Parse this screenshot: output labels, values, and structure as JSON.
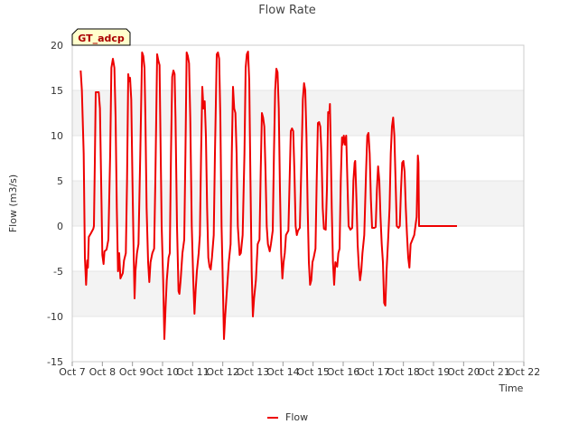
{
  "chart_data": {
    "type": "line",
    "title": "Flow Rate",
    "badge": "GT_adcp",
    "xlabel": "Time",
    "ylabel": "Flow (m3/s)",
    "xlim": [
      7,
      22
    ],
    "ylim": [
      -15,
      20
    ],
    "x_ticks": [
      {
        "value": 7,
        "label": "Oct 7"
      },
      {
        "value": 8,
        "label": "Oct 8"
      },
      {
        "value": 9,
        "label": "Oct 9"
      },
      {
        "value": 10,
        "label": "Oct 10"
      },
      {
        "value": 11,
        "label": "Oct 11"
      },
      {
        "value": 12,
        "label": "Oct 12"
      },
      {
        "value": 13,
        "label": "Oct 13"
      },
      {
        "value": 14,
        "label": "Oct 14"
      },
      {
        "value": 15,
        "label": "Oct 15"
      },
      {
        "value": 16,
        "label": "Oct 16"
      },
      {
        "value": 17,
        "label": "Oct 17"
      },
      {
        "value": 18,
        "label": "Oct 18"
      },
      {
        "value": 19,
        "label": "Oct 19"
      },
      {
        "value": 20,
        "label": "Oct 20"
      },
      {
        "value": 21,
        "label": "Oct 21"
      },
      {
        "value": 22,
        "label": "Oct 22"
      }
    ],
    "y_ticks": [
      {
        "value": -15,
        "label": "-15"
      },
      {
        "value": -10,
        "label": "-10"
      },
      {
        "value": -5,
        "label": "-5"
      },
      {
        "value": 0,
        "label": "0"
      },
      {
        "value": 5,
        "label": "5"
      },
      {
        "value": 10,
        "label": "10"
      },
      {
        "value": 15,
        "label": "15"
      },
      {
        "value": 20,
        "label": "20"
      }
    ],
    "bands": [
      [
        -10,
        -5
      ],
      [
        0,
        5
      ],
      [
        10,
        15
      ]
    ],
    "legend": {
      "position": "bottom-center"
    },
    "series": [
      {
        "name": "Flow",
        "color": "#ee0000",
        "points": [
          [
            7.28,
            17.2
          ],
          [
            7.32,
            15.0
          ],
          [
            7.38,
            8.0
          ],
          [
            7.42,
            -3.5
          ],
          [
            7.46,
            -6.5
          ],
          [
            7.5,
            -3.8
          ],
          [
            7.52,
            -4.6
          ],
          [
            7.55,
            -1.2
          ],
          [
            7.62,
            -0.8
          ],
          [
            7.7,
            -0.3
          ],
          [
            7.72,
            0.0
          ],
          [
            7.75,
            7.0
          ],
          [
            7.78,
            14.8
          ],
          [
            7.88,
            14.8
          ],
          [
            7.92,
            13.0
          ],
          [
            7.97,
            3.0
          ],
          [
            8.0,
            -3.2
          ],
          [
            8.04,
            -4.2
          ],
          [
            8.07,
            -2.8
          ],
          [
            8.14,
            -2.6
          ],
          [
            8.2,
            -1.5
          ],
          [
            8.26,
            8.0
          ],
          [
            8.3,
            17.5
          ],
          [
            8.35,
            18.5
          ],
          [
            8.4,
            17.5
          ],
          [
            8.44,
            12.0
          ],
          [
            8.48,
            2.0
          ],
          [
            8.52,
            -5.0
          ],
          [
            8.56,
            -3.0
          ],
          [
            8.6,
            -5.8
          ],
          [
            8.68,
            -5.2
          ],
          [
            8.72,
            -3.8
          ],
          [
            8.78,
            -3.0
          ],
          [
            8.82,
            5.0
          ],
          [
            8.86,
            16.8
          ],
          [
            8.89,
            16.0
          ],
          [
            8.92,
            16.4
          ],
          [
            8.96,
            14.0
          ],
          [
            9.0,
            5.0
          ],
          [
            9.04,
            -3.0
          ],
          [
            9.07,
            -8.0
          ],
          [
            9.1,
            -5.0
          ],
          [
            9.15,
            -3.0
          ],
          [
            9.2,
            -2.0
          ],
          [
            9.26,
            8.0
          ],
          [
            9.32,
            19.2
          ],
          [
            9.36,
            18.8
          ],
          [
            9.4,
            17.5
          ],
          [
            9.43,
            12.0
          ],
          [
            9.47,
            2.0
          ],
          [
            9.52,
            -4.0
          ],
          [
            9.56,
            -6.2
          ],
          [
            9.6,
            -4.0
          ],
          [
            9.66,
            -3.0
          ],
          [
            9.72,
            -2.5
          ],
          [
            9.76,
            5.0
          ],
          [
            9.82,
            19.0
          ],
          [
            9.86,
            18.3
          ],
          [
            9.9,
            17.8
          ],
          [
            9.93,
            10.0
          ],
          [
            9.97,
            0.0
          ],
          [
            10.02,
            -6.0
          ],
          [
            10.06,
            -12.5
          ],
          [
            10.1,
            -9.0
          ],
          [
            10.14,
            -6.0
          ],
          [
            10.2,
            -3.5
          ],
          [
            10.24,
            -3.0
          ],
          [
            10.28,
            8.0
          ],
          [
            10.32,
            16.5
          ],
          [
            10.36,
            17.2
          ],
          [
            10.4,
            16.8
          ],
          [
            10.43,
            12.0
          ],
          [
            10.48,
            0.0
          ],
          [
            10.53,
            -7.2
          ],
          [
            10.56,
            -7.5
          ],
          [
            10.6,
            -6.0
          ],
          [
            10.66,
            -3.0
          ],
          [
            10.72,
            -1.5
          ],
          [
            10.76,
            8.0
          ],
          [
            10.8,
            19.2
          ],
          [
            10.84,
            18.8
          ],
          [
            10.88,
            18.0
          ],
          [
            10.92,
            12.0
          ],
          [
            10.97,
            0.0
          ],
          [
            11.02,
            -6.0
          ],
          [
            11.06,
            -9.7
          ],
          [
            11.1,
            -7.0
          ],
          [
            11.14,
            -5.0
          ],
          [
            11.2,
            -3.0
          ],
          [
            11.24,
            -1.0
          ],
          [
            11.28,
            8.0
          ],
          [
            11.32,
            15.4
          ],
          [
            11.36,
            13.0
          ],
          [
            11.4,
            13.8
          ],
          [
            11.44,
            10.0
          ],
          [
            11.48,
            2.0
          ],
          [
            11.52,
            -3.5
          ],
          [
            11.56,
            -4.5
          ],
          [
            11.6,
            -4.8
          ],
          [
            11.64,
            -3.5
          ],
          [
            11.7,
            -1.0
          ],
          [
            11.74,
            8.0
          ],
          [
            11.8,
            19.0
          ],
          [
            11.84,
            19.2
          ],
          [
            11.88,
            18.5
          ],
          [
            11.92,
            12.0
          ],
          [
            11.96,
            0.0
          ],
          [
            12.0,
            -6.0
          ],
          [
            12.04,
            -12.5
          ],
          [
            12.08,
            -10.0
          ],
          [
            12.14,
            -7.0
          ],
          [
            12.2,
            -4.0
          ],
          [
            12.26,
            -2.0
          ],
          [
            12.3,
            8.0
          ],
          [
            12.34,
            15.4
          ],
          [
            12.38,
            13.0
          ],
          [
            12.42,
            12.5
          ],
          [
            12.46,
            8.0
          ],
          [
            12.5,
            0.0
          ],
          [
            12.56,
            -3.2
          ],
          [
            12.6,
            -3.0
          ],
          [
            12.66,
            -1.0
          ],
          [
            12.72,
            8.0
          ],
          [
            12.76,
            17.5
          ],
          [
            12.8,
            19.0
          ],
          [
            12.84,
            19.3
          ],
          [
            12.88,
            16.0
          ],
          [
            12.92,
            5.0
          ],
          [
            12.96,
            -5.0
          ],
          [
            13.0,
            -10.0
          ],
          [
            13.04,
            -8.0
          ],
          [
            13.1,
            -6.0
          ],
          [
            13.16,
            -2.0
          ],
          [
            13.22,
            -1.5
          ],
          [
            13.26,
            6.0
          ],
          [
            13.3,
            12.5
          ],
          [
            13.34,
            12.0
          ],
          [
            13.38,
            11.0
          ],
          [
            13.42,
            6.0
          ],
          [
            13.46,
            0.0
          ],
          [
            13.5,
            -2.0
          ],
          [
            13.56,
            -2.8
          ],
          [
            13.6,
            -2.0
          ],
          [
            13.66,
            -0.5
          ],
          [
            13.7,
            8.0
          ],
          [
            13.74,
            15.0
          ],
          [
            13.78,
            17.4
          ],
          [
            13.82,
            17.0
          ],
          [
            13.86,
            13.0
          ],
          [
            13.9,
            4.0
          ],
          [
            13.94,
            -3.0
          ],
          [
            13.98,
            -5.8
          ],
          [
            14.02,
            -4.0
          ],
          [
            14.06,
            -3.0
          ],
          [
            14.1,
            -1.0
          ],
          [
            14.18,
            -0.5
          ],
          [
            14.22,
            5.0
          ],
          [
            14.26,
            10.5
          ],
          [
            14.3,
            10.8
          ],
          [
            14.34,
            10.5
          ],
          [
            14.38,
            6.0
          ],
          [
            14.42,
            0.0
          ],
          [
            14.46,
            -1.0
          ],
          [
            14.5,
            -0.5
          ],
          [
            14.56,
            -0.2
          ],
          [
            14.62,
            8.0
          ],
          [
            14.66,
            14.0
          ],
          [
            14.7,
            15.8
          ],
          [
            14.74,
            15.0
          ],
          [
            14.78,
            10.0
          ],
          [
            14.82,
            2.0
          ],
          [
            14.86,
            -4.0
          ],
          [
            14.9,
            -6.5
          ],
          [
            14.94,
            -6.0
          ],
          [
            14.98,
            -4.0
          ],
          [
            15.02,
            -3.5
          ],
          [
            15.08,
            -2.5
          ],
          [
            15.12,
            5.0
          ],
          [
            15.16,
            11.4
          ],
          [
            15.2,
            11.5
          ],
          [
            15.24,
            11.0
          ],
          [
            15.28,
            8.0
          ],
          [
            15.32,
            2.0
          ],
          [
            15.36,
            -0.3
          ],
          [
            15.42,
            -0.4
          ],
          [
            15.46,
            4.0
          ],
          [
            15.5,
            12.6
          ],
          [
            15.54,
            12.5
          ],
          [
            15.56,
            13.5
          ],
          [
            15.58,
            10.0
          ],
          [
            15.62,
            2.0
          ],
          [
            15.66,
            -4.0
          ],
          [
            15.7,
            -6.5
          ],
          [
            15.74,
            -4.0
          ],
          [
            15.8,
            -4.5
          ],
          [
            15.84,
            -3.0
          ],
          [
            15.88,
            -2.5
          ],
          [
            15.92,
            5.0
          ],
          [
            15.96,
            9.8
          ],
          [
            15.98,
            9.0
          ],
          [
            16.02,
            10.0
          ],
          [
            16.06,
            9.0
          ],
          [
            16.1,
            10.0
          ],
          [
            16.14,
            5.0
          ],
          [
            16.18,
            0.0
          ],
          [
            16.24,
            -0.4
          ],
          [
            16.3,
            -0.2
          ],
          [
            16.34,
            5.0
          ],
          [
            16.38,
            7.0
          ],
          [
            16.4,
            7.2
          ],
          [
            16.44,
            3.0
          ],
          [
            16.48,
            -2.0
          ],
          [
            16.52,
            -4.5
          ],
          [
            16.56,
            -6.0
          ],
          [
            16.6,
            -5.0
          ],
          [
            16.64,
            -3.0
          ],
          [
            16.7,
            -1.0
          ],
          [
            16.76,
            6.0
          ],
          [
            16.8,
            10.0
          ],
          [
            16.84,
            10.3
          ],
          [
            16.88,
            8.0
          ],
          [
            16.92,
            3.0
          ],
          [
            16.96,
            -0.2
          ],
          [
            17.04,
            -0.2
          ],
          [
            17.08,
            -0.1
          ],
          [
            17.12,
            4.0
          ],
          [
            17.16,
            6.6
          ],
          [
            17.2,
            5.0
          ],
          [
            17.24,
            1.0
          ],
          [
            17.28,
            -2.0
          ],
          [
            17.32,
            -4.0
          ],
          [
            17.36,
            -8.5
          ],
          [
            17.4,
            -8.8
          ],
          [
            17.44,
            -5.0
          ],
          [
            17.5,
            -1.0
          ],
          [
            17.54,
            2.0
          ],
          [
            17.58,
            8.0
          ],
          [
            17.62,
            11.0
          ],
          [
            17.66,
            12.0
          ],
          [
            17.7,
            10.0
          ],
          [
            17.74,
            5.0
          ],
          [
            17.78,
            0.0
          ],
          [
            17.84,
            -0.2
          ],
          [
            17.88,
            0.0
          ],
          [
            17.92,
            4.0
          ],
          [
            17.96,
            7.0
          ],
          [
            18.0,
            7.2
          ],
          [
            18.04,
            6.0
          ],
          [
            18.08,
            2.0
          ],
          [
            18.12,
            -1.0
          ],
          [
            18.16,
            -3.5
          ],
          [
            18.2,
            -4.6
          ],
          [
            18.24,
            -2.0
          ],
          [
            18.3,
            -1.5
          ],
          [
            18.36,
            -1.0
          ],
          [
            18.4,
            0.0
          ],
          [
            18.44,
            1.0
          ],
          [
            18.48,
            7.8
          ],
          [
            18.5,
            7.0
          ],
          [
            18.52,
            0.0
          ],
          [
            18.6,
            0.0
          ],
          [
            18.8,
            0.0
          ],
          [
            19.0,
            0.0
          ],
          [
            19.2,
            0.0
          ],
          [
            19.5,
            0.0
          ],
          [
            19.78,
            0.0
          ]
        ]
      }
    ]
  }
}
